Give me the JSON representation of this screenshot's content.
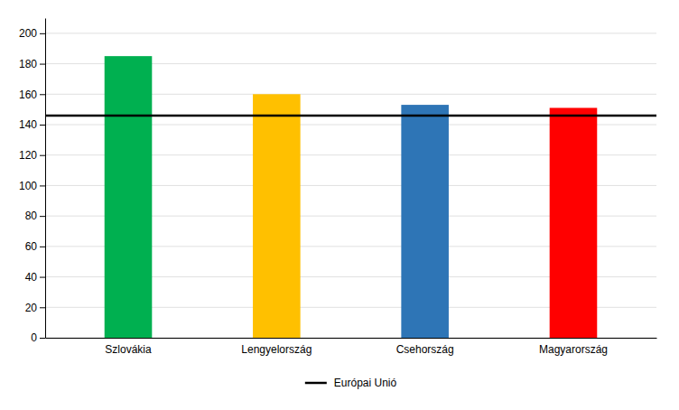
{
  "chart_data": {
    "type": "bar",
    "categories": [
      "Szlovákia",
      "Lengyelország",
      "Csehország",
      "Magyarország"
    ],
    "values": [
      185,
      160,
      153,
      151
    ],
    "colors": [
      "#00B050",
      "#FFC000",
      "#2E75B6",
      "#FF0000"
    ],
    "reference_line": {
      "name": "Európai Unió",
      "value": 146,
      "color": "#000000"
    },
    "ylim": [
      0,
      210
    ],
    "yticks": [
      0,
      20,
      40,
      60,
      80,
      100,
      120,
      140,
      160,
      180,
      200
    ],
    "grid": true,
    "legend": "bottom"
  }
}
